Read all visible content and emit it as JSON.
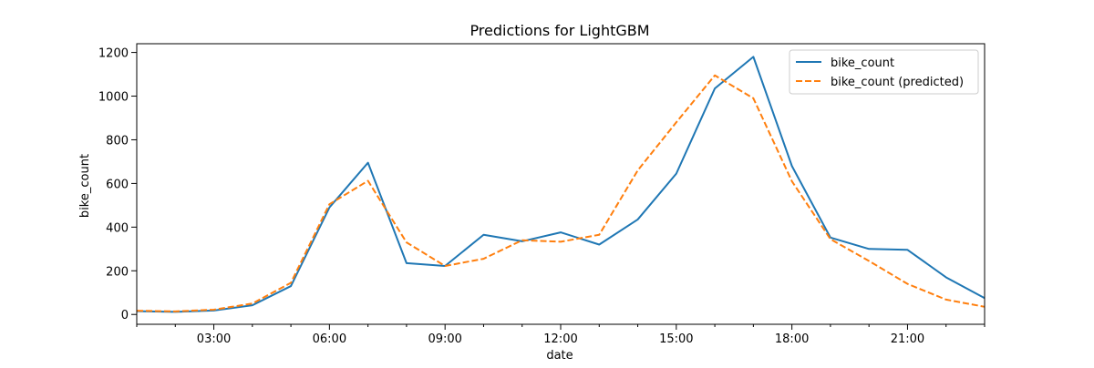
{
  "chart_data": {
    "type": "line",
    "title": "Predictions for LightGBM",
    "xlabel": "date",
    "ylabel": "bike_count",
    "x": [
      "01:00",
      "02:00",
      "03:00",
      "04:00",
      "05:00",
      "06:00",
      "07:00",
      "08:00",
      "09:00",
      "10:00",
      "11:00",
      "12:00",
      "13:00",
      "14:00",
      "15:00",
      "16:00",
      "17:00",
      "18:00",
      "19:00",
      "20:00",
      "21:00",
      "22:00",
      "23:00"
    ],
    "xlim": [
      "01:00",
      "23:00"
    ],
    "ylim": [
      -45,
      1240
    ],
    "x_ticks": [
      "03:00",
      "06:00",
      "09:00",
      "12:00",
      "15:00",
      "18:00",
      "21:00"
    ],
    "y_ticks": [
      0,
      200,
      400,
      600,
      800,
      1000,
      1200
    ],
    "grid": false,
    "legend_position": "upper right",
    "series": [
      {
        "name": "bike_count",
        "color": "#1f77b4",
        "dash": "solid",
        "values": [
          15,
          12,
          18,
          42,
          130,
          490,
          695,
          235,
          222,
          365,
          335,
          376,
          320,
          435,
          645,
          1035,
          1180,
          680,
          352,
          300,
          296,
          170,
          75
        ]
      },
      {
        "name": "bike_count (predicted)",
        "color": "#ff7f0e",
        "dash": "dashed",
        "values": [
          17,
          14,
          22,
          50,
          145,
          505,
          612,
          330,
          222,
          255,
          340,
          333,
          365,
          660,
          880,
          1095,
          990,
          610,
          345,
          245,
          140,
          68,
          35
        ]
      }
    ]
  }
}
